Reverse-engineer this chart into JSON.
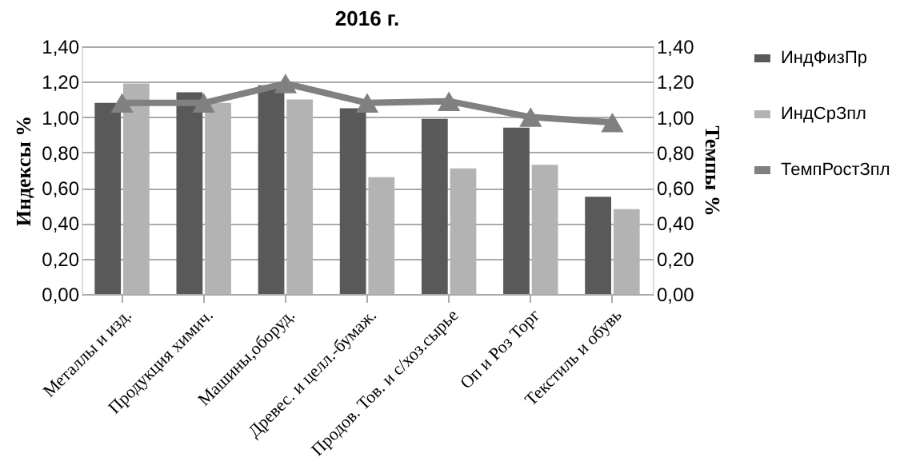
{
  "chart_data": {
    "type": "bar",
    "title": "2016 г.",
    "ylabel": "Индексы %",
    "y2label": "Темпы %",
    "categories": [
      "Металлы и изд.",
      "Продукция химич.",
      "Машины,оборуд.",
      "Древес. и целл.-бумаж.",
      "Продов. Тов. и с/хоз.сырье",
      "Оп и Роз Торг",
      "Текстиль и обувь"
    ],
    "series": [
      {
        "name": "ИндФизПр",
        "color": "#595959",
        "values": [
          1.08,
          1.14,
          1.18,
          1.05,
          0.99,
          0.94,
          0.55
        ]
      },
      {
        "name": "ИндСрЗпл",
        "color": "#b3b3b3",
        "values": [
          1.19,
          1.08,
          1.1,
          0.66,
          0.71,
          0.73,
          0.48
        ]
      },
      {
        "name": "ТемпРостЗпл",
        "type": "line",
        "axis": "y2",
        "marker": "triangle",
        "color": "#808080",
        "values": [
          1.08,
          1.08,
          1.19,
          1.08,
          1.09,
          1.0,
          0.97
        ]
      }
    ],
    "ylim": [
      0,
      1.4
    ],
    "yticks": [
      {
        "value": 0,
        "label": "0,00"
      },
      {
        "value": 0.2,
        "label": "0,20"
      },
      {
        "value": 0.4,
        "label": "0,40"
      },
      {
        "value": 0.6,
        "label": "0,60"
      },
      {
        "value": 0.8,
        "label": "0,80"
      },
      {
        "value": 1.0,
        "label": "1,00"
      },
      {
        "value": 1.2,
        "label": "1,20"
      },
      {
        "value": 1.4,
        "label": "1,40"
      }
    ],
    "y2lim": [
      0,
      1.4
    ],
    "y2ticks": [
      {
        "value": 0,
        "label": "0,00"
      },
      {
        "value": 0.2,
        "label": "0,20"
      },
      {
        "value": 0.4,
        "label": "0,40"
      },
      {
        "value": 0.6,
        "label": "0,60"
      },
      {
        "value": 0.8,
        "label": "0,80"
      },
      {
        "value": 1.0,
        "label": "1,00"
      },
      {
        "value": 1.2,
        "label": "1,20"
      },
      {
        "value": 1.4,
        "label": "1,40"
      }
    ],
    "grid": "y",
    "legend": "right"
  }
}
